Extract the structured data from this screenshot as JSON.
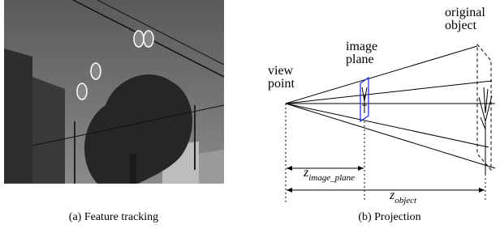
{
  "figure": {
    "panels": [
      {
        "caption": "(a) Feature tracking"
      },
      {
        "caption": "(b) Projection",
        "labels": {
          "view_point": [
            "view",
            "point"
          ],
          "image_plane": [
            "image",
            "plane"
          ],
          "original_object": [
            "original",
            "object"
          ]
        },
        "distances": [
          {
            "symbol": "z",
            "subscript": "image_plane"
          },
          {
            "symbol": "z",
            "subscript": "object"
          }
        ]
      }
    ]
  }
}
